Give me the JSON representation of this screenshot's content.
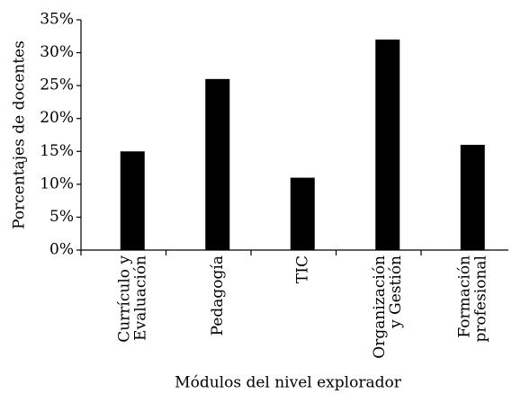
{
  "chart_data": {
    "type": "bar",
    "categories": [
      "Currículo y\nEvaluación",
      "Pedagogía",
      "TIC",
      "Organización\ny Gestión",
      "Formación\nprofesional"
    ],
    "values": [
      15,
      26,
      11,
      32,
      16
    ],
    "color": "#000000",
    "xlabel": "Módulos del nivel explorador",
    "ylabel": "Porcentajes de docentes",
    "ylim": [
      0,
      35
    ],
    "yticks": [
      {
        "value": 0,
        "label": "0%"
      },
      {
        "value": 5,
        "label": "5%"
      },
      {
        "value": 10,
        "label": "10%"
      },
      {
        "value": 15,
        "label": "15%"
      },
      {
        "value": 20,
        "label": "20%"
      },
      {
        "value": 25,
        "label": "25%"
      },
      {
        "value": 30,
        "label": "30%"
      },
      {
        "value": 35,
        "label": "35%"
      }
    ],
    "grid": false
  }
}
